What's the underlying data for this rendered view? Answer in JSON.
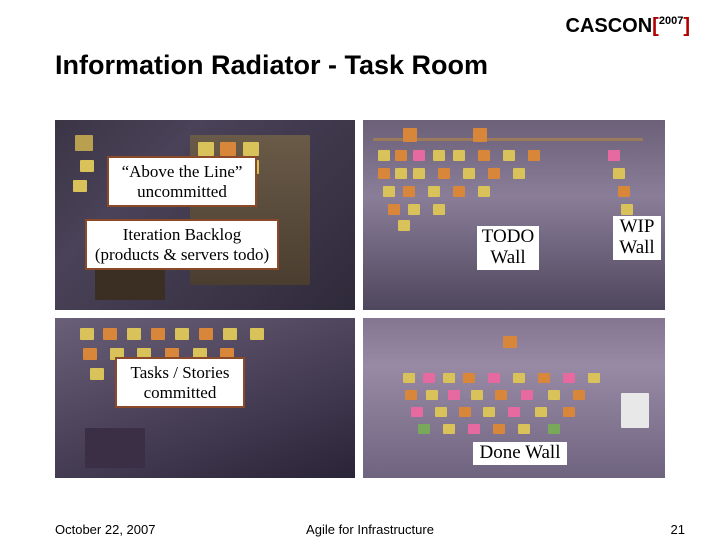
{
  "logo": {
    "brand": "CASCON",
    "year": "2007"
  },
  "title": "Information Radiator - Task Room",
  "callouts": {
    "above_line": "“Above the Line”\nuncommitted",
    "iteration_backlog": "Iteration Backlog\n(products & servers todo)",
    "tasks_committed": "Tasks / Stories\ncommitted"
  },
  "overlays": {
    "todo_wall": "TODO\nWall",
    "wip_wall": "WIP\nWall",
    "done_wall": "Done Wall"
  },
  "footer": {
    "date": "October 22, 2007",
    "center": "Agile for Infrastructure",
    "page": "21"
  },
  "colors": {
    "callout_border": "#8a4a2a",
    "note_yellow": "#d9c25a",
    "note_orange": "#d8873a",
    "note_pink": "#e66aa0",
    "note_green": "#7aa85a",
    "note_brown": "#8a6a4a"
  }
}
